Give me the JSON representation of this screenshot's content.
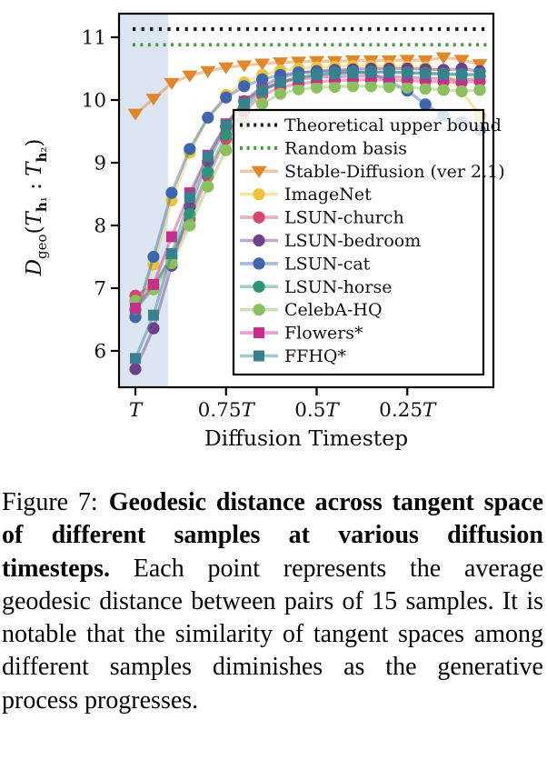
{
  "figure": {
    "caption": {
      "prefix": "Figure 7:",
      "bold": "Geodesic distance across tangent space of different samples at various diffusion timesteps.",
      "rest": " Each point represents the average geodesic distance between pairs of 15 samples. It is notable that the similarity of tangent spaces among different samples diminishes as the generative process progresses."
    }
  },
  "chart_data": {
    "type": "line",
    "title": "",
    "xlabel": "Diffusion Timestep",
    "ylabel": "D_geo(T_h1 : T_h2)",
    "ylabel_parts": {
      "D": "D",
      "sub": "geo",
      "lp": "(",
      "T1": "T",
      "h1": "h",
      "s1": "₁",
      "colon": " : ",
      "T2": "T",
      "h2": "h",
      "s2": "₂",
      "rp": ")"
    },
    "x": [
      1.0,
      0.95,
      0.9,
      0.85,
      0.8,
      0.75,
      0.7,
      0.65,
      0.6,
      0.55,
      0.5,
      0.45,
      0.4,
      0.35,
      0.3,
      0.25,
      0.2,
      0.15,
      0.1,
      0.05
    ],
    "x_unit": "T",
    "ylim": [
      5.42,
      11.38
    ],
    "yticks": [
      "6",
      "7",
      "8",
      "9",
      "10",
      "11"
    ],
    "ytick_values": [
      6,
      7,
      8,
      9,
      10,
      11
    ],
    "xticks": [
      {
        "num": "",
        "sym": "T",
        "t": 1.0
      },
      {
        "num": "0.75",
        "sym": "T",
        "t": 0.75
      },
      {
        "num": "0.5",
        "sym": "T",
        "t": 0.5
      },
      {
        "num": "0.25",
        "sym": "T",
        "t": 0.25
      }
    ],
    "grid": false,
    "legend_position": "inside lower right",
    "legend_bg_opacity": 0.82,
    "shaded_region": {
      "t_from": 1.0,
      "t_to": 0.91,
      "color": "#dce6f2"
    },
    "hlines": [
      {
        "name": "Theoretical upper bound",
        "value": 11.13,
        "style": "dotted",
        "color": "#1a1a1a"
      },
      {
        "name": "Random basis",
        "value": 10.88,
        "style": "dotted",
        "color": "#4a9a3f"
      }
    ],
    "series": [
      {
        "name": "Stable-Diffusion (ver 2.1)",
        "marker": "triangle-down",
        "color": "#e0862c",
        "values": [
          9.78,
          10.02,
          10.27,
          10.39,
          10.46,
          10.52,
          10.55,
          10.58,
          10.6,
          10.61,
          10.62,
          10.62,
          10.63,
          10.63,
          10.63,
          10.64,
          10.63,
          10.68,
          10.64,
          10.57
        ]
      },
      {
        "name": "ImageNet",
        "marker": "circle",
        "color": "#eac43e",
        "values": [
          6.58,
          7.38,
          8.4,
          9.16,
          9.72,
          10.08,
          10.28,
          10.4,
          10.47,
          10.5,
          10.52,
          10.53,
          10.54,
          10.54,
          10.54,
          10.53,
          10.52,
          10.48,
          10.14,
          9.75
        ]
      },
      {
        "name": "LSUN-church",
        "marker": "circle",
        "color": "#d6456b",
        "values": [
          6.88,
          7.05,
          7.48,
          8.1,
          8.78,
          9.38,
          9.82,
          10.08,
          10.2,
          10.26,
          10.29,
          10.31,
          10.32,
          10.32,
          10.32,
          10.31,
          10.3,
          10.29,
          10.28,
          10.3
        ]
      },
      {
        "name": "LSUN-bedroom",
        "marker": "circle",
        "color": "#6f3f8c",
        "values": [
          5.71,
          6.36,
          7.36,
          8.3,
          9.02,
          9.58,
          9.98,
          10.22,
          10.36,
          10.43,
          10.46,
          10.48,
          10.49,
          10.5,
          10.5,
          10.5,
          10.49,
          10.48,
          10.5,
          10.46
        ]
      },
      {
        "name": "LSUN-cat",
        "marker": "circle",
        "color": "#3f66ad",
        "values": [
          6.54,
          7.5,
          8.52,
          9.22,
          9.72,
          10.04,
          10.22,
          10.33,
          10.4,
          10.44,
          10.45,
          10.46,
          10.46,
          10.42,
          10.3,
          10.15,
          9.93,
          9.75,
          9.65,
          9.52
        ]
      },
      {
        "name": "LSUN-horse",
        "marker": "circle",
        "color": "#2d9577",
        "values": [
          6.66,
          7.0,
          7.52,
          8.18,
          8.85,
          9.45,
          9.88,
          10.14,
          10.28,
          10.36,
          10.4,
          10.43,
          10.44,
          10.45,
          10.45,
          10.44,
          10.43,
          10.42,
          10.41,
          10.38
        ]
      },
      {
        "name": "CelebA-HQ",
        "marker": "circle",
        "color": "#8cc05e",
        "values": [
          6.8,
          6.98,
          7.4,
          8.0,
          8.62,
          9.2,
          9.64,
          9.94,
          10.1,
          10.17,
          10.2,
          10.21,
          10.22,
          10.22,
          10.21,
          10.2,
          10.18,
          10.16,
          10.14,
          10.16
        ]
      },
      {
        "name": "Flowers*",
        "marker": "square",
        "color": "#c52e8a",
        "values": [
          6.68,
          7.06,
          7.82,
          8.52,
          9.12,
          9.62,
          9.98,
          10.18,
          10.28,
          10.33,
          10.36,
          10.37,
          10.38,
          10.38,
          10.37,
          10.36,
          10.35,
          10.34,
          10.32,
          10.34
        ]
      },
      {
        "name": "FFHQ*",
        "marker": "square",
        "color": "#39808e",
        "values": [
          5.88,
          6.57,
          7.55,
          8.45,
          9.1,
          9.6,
          9.95,
          10.16,
          10.29,
          10.36,
          10.4,
          10.42,
          10.43,
          10.44,
          10.44,
          10.43,
          10.42,
          10.41,
          10.4,
          10.42
        ]
      }
    ]
  }
}
